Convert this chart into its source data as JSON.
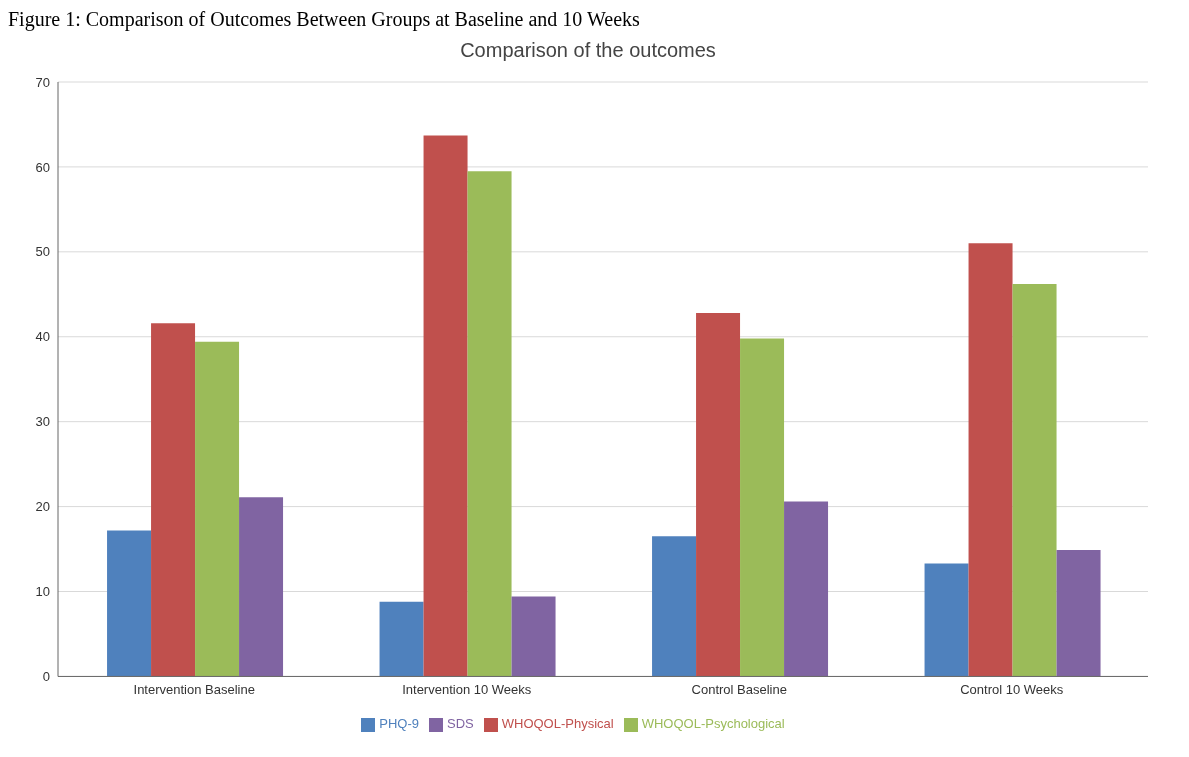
{
  "chart_data": {
    "type": "bar",
    "title": "Figure 1: Comparison of Outcomes Between Groups at Baseline and 10 Weeks",
    "subtitle": "Comparison of the outcomes",
    "categories": [
      "Intervention Baseline",
      "Intervention 10 Weeks",
      "Control Baseline",
      "Control 10 Weeks"
    ],
    "series": [
      {
        "name": "PHQ-9",
        "color": "#4f81bd",
        "values": [
          17.2,
          8.8,
          16.5,
          13.3
        ]
      },
      {
        "name": "WHOQOL-Physical",
        "color": "#c0504d",
        "values": [
          41.6,
          63.7,
          42.8,
          51
        ]
      },
      {
        "name": "WHOQOL-Psychological",
        "color": "#9bbb59",
        "values": [
          39.4,
          59.5,
          39.8,
          46.2
        ]
      },
      {
        "name": "SDS",
        "color": "#8064a2",
        "values": [
          21.1,
          9.4,
          20.6,
          14.9
        ]
      }
    ],
    "ylim": [
      0,
      70
    ],
    "yticks": [
      0,
      10,
      20,
      30,
      40,
      50,
      60,
      70
    ],
    "grid": "y",
    "legend": "bottom"
  }
}
